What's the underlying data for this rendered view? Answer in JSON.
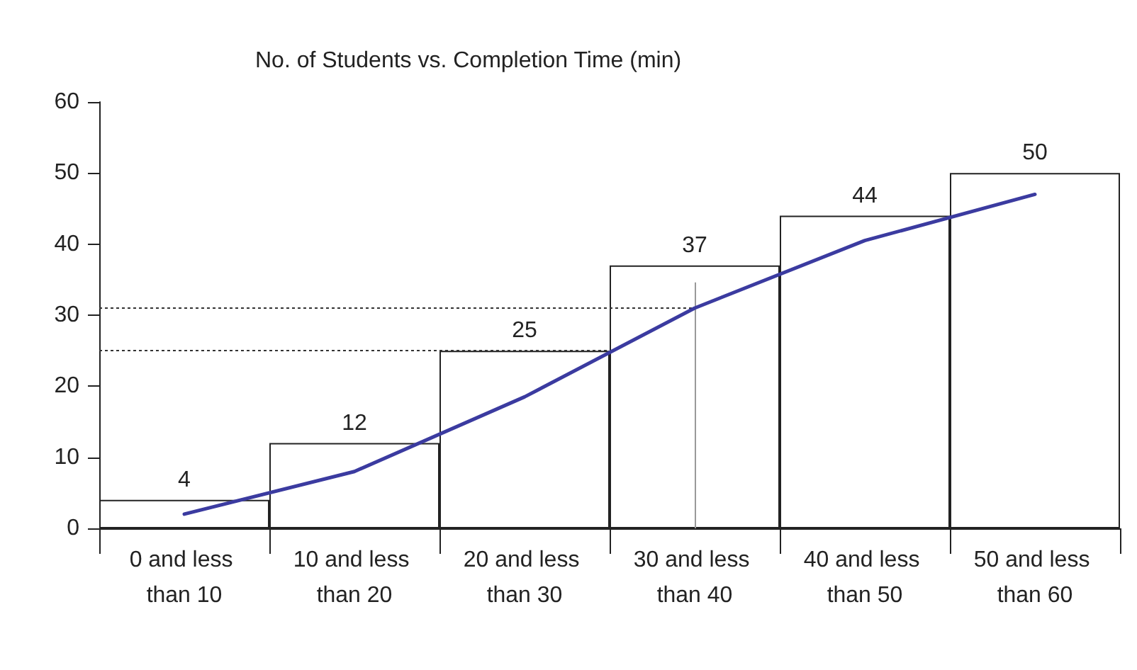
{
  "chart_data": {
    "type": "bar",
    "title": "No. of Students vs. Completion Time (min)",
    "categories": [
      "0 and less than 10",
      "10 and less than 20",
      "20 and less than 30",
      "30 and less than 40",
      "40 and less than 50",
      "50 and less than 60"
    ],
    "series": [
      {
        "color": "#ffffff",
        "values": [
          4,
          12,
          25,
          37,
          44,
          50
        ],
        "value_labels": [
          "4",
          "12",
          "25",
          "37",
          "44",
          "50"
        ]
      },
      {
        "type": "line",
        "color": "#3b3ba0",
        "values": [
          2,
          8,
          18.5,
          31,
          40.5,
          47
        ]
      }
    ],
    "ylim": [
      0,
      60
    ],
    "yticks": [
      0,
      10,
      20,
      30,
      40,
      50,
      60
    ],
    "ref_lines": [
      {
        "axis": "y",
        "value": 25,
        "line_style": "dotted",
        "color": "#333333"
      },
      {
        "axis": "y",
        "value": 31,
        "line_style": "dotted",
        "color": "#333333"
      },
      {
        "axis": "x",
        "value": "30 and less than 40",
        "line_style": "solid",
        "color": "#999999"
      }
    ],
    "grid": false,
    "marker": "none"
  }
}
